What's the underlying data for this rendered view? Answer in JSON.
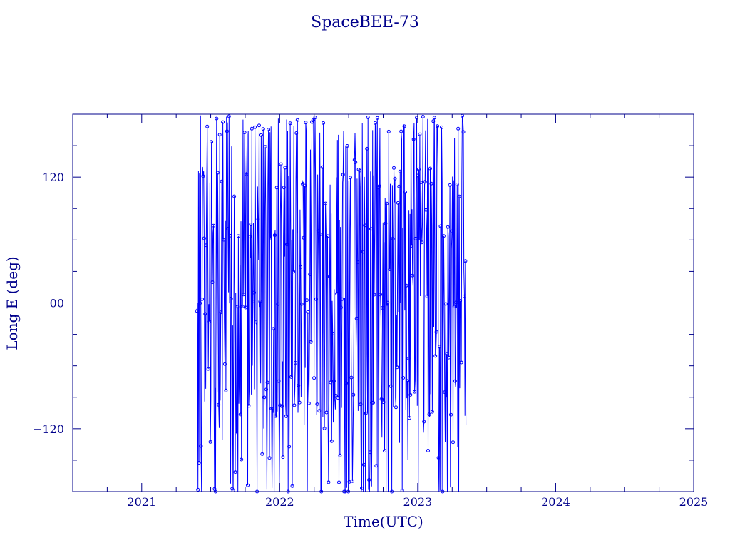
{
  "chart_data": {
    "type": "line",
    "title": "SpaceBEE-73",
    "xlabel": "Time(UTC)",
    "ylabel": "Long E (deg)",
    "xlim": [
      2020.5,
      2025.0
    ],
    "ylim": [
      -180,
      180
    ],
    "x_ticks": [
      2021,
      2022,
      2023,
      2024,
      2025
    ],
    "x_tick_labels": [
      "2021",
      "2022",
      "2023",
      "2024",
      "2025"
    ],
    "y_ticks": [
      -120,
      0,
      120
    ],
    "y_tick_labels": [
      "−120",
      "00",
      "120"
    ],
    "color": "#0000ff",
    "axis_color": "#00008b",
    "grid": false,
    "series": [
      {
        "x_start": 2021.4,
        "x_end": 2023.35,
        "description_values": {
          "long_e_min": -180,
          "long_e_max": 180,
          "dense_clusters": [
            170,
            120,
            70,
            0,
            -80,
            -100,
            -180
          ]
        }
      }
    ]
  }
}
